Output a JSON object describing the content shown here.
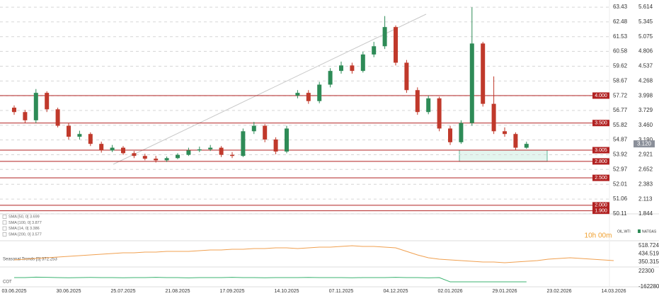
{
  "chart_data": {
    "type": "candlestick",
    "categories": [
      "03.06.2025",
      null,
      null,
      null,
      null,
      "30.06.2025",
      null,
      null,
      null,
      null,
      "25.07.2025",
      null,
      null,
      null,
      null,
      "21.08.2025",
      null,
      null,
      null,
      null,
      "17.09.2025",
      null,
      null,
      null,
      null,
      "14.10.2025",
      null,
      null,
      null,
      null,
      "07.11.2025",
      null,
      null,
      null,
      null,
      "04.12.2025",
      null,
      null,
      null,
      null,
      "02.01.2026",
      null,
      null,
      null,
      null,
      "29.01.2026",
      null,
      null,
      null,
      null,
      "23.02.2026",
      null,
      null,
      null,
      null,
      "14.03.2026"
    ],
    "series": [
      {
        "name": "NATGAS",
        "axis": "y2",
        "up_color": "#2e8b57",
        "down_color": "#c0392b",
        "open": [
          3.78,
          3.7,
          3.55,
          4.05,
          3.75,
          3.45,
          3.25,
          3.3,
          3.12,
          3.0,
          3.05,
          2.95,
          2.9,
          2.85,
          2.82,
          2.86,
          2.92,
          3.0,
          3.02,
          3.05,
          2.92,
          2.9,
          3.35,
          3.45,
          3.2,
          2.98,
          4.0,
          4.05,
          3.9,
          4.2,
          4.45,
          4.55,
          4.45,
          4.75,
          4.9,
          5.25,
          4.6,
          4.1,
          3.7,
          3.95,
          3.4,
          3.15,
          3.5,
          4.95,
          3.85,
          3.35,
          3.3,
          3.05,
          null,
          null,
          null,
          null,
          null,
          null,
          null,
          null
        ],
        "high": [
          3.82,
          3.74,
          4.12,
          4.08,
          3.78,
          3.5,
          3.36,
          3.33,
          3.16,
          3.1,
          3.08,
          2.99,
          2.94,
          2.9,
          2.89,
          2.95,
          3.05,
          3.07,
          3.1,
          3.08,
          2.97,
          3.4,
          3.52,
          3.48,
          3.24,
          3.45,
          4.1,
          4.1,
          4.25,
          4.5,
          4.62,
          4.6,
          4.8,
          4.98,
          5.45,
          5.28,
          4.65,
          4.15,
          4.0,
          3.98,
          3.45,
          3.55,
          5.61,
          4.98,
          4.35,
          3.42,
          3.33,
          3.16,
          null,
          null,
          null,
          null,
          null,
          null,
          null,
          null
        ],
        "low": [
          3.65,
          3.5,
          3.5,
          3.7,
          3.42,
          3.2,
          3.2,
          3.08,
          2.96,
          2.97,
          2.92,
          2.86,
          2.82,
          2.78,
          2.79,
          2.84,
          2.9,
          2.97,
          2.99,
          2.88,
          2.86,
          2.88,
          3.3,
          3.15,
          2.93,
          2.95,
          3.95,
          3.85,
          3.86,
          4.15,
          4.4,
          4.4,
          4.42,
          4.7,
          4.85,
          4.55,
          4.05,
          3.65,
          3.66,
          3.35,
          3.1,
          3.12,
          3.45,
          3.8,
          3.3,
          3.25,
          3.0,
          3.03,
          null,
          null,
          null,
          null,
          null,
          null,
          null,
          null
        ],
        "close": [
          3.7,
          3.55,
          4.05,
          3.75,
          3.45,
          3.25,
          3.3,
          3.12,
          3.0,
          3.05,
          2.95,
          2.9,
          2.85,
          2.82,
          2.86,
          2.92,
          3.0,
          3.02,
          3.05,
          2.92,
          2.9,
          3.35,
          3.45,
          3.2,
          2.98,
          3.4,
          4.05,
          3.9,
          4.2,
          4.45,
          4.55,
          4.45,
          4.75,
          4.9,
          5.25,
          4.6,
          4.1,
          3.7,
          3.95,
          3.4,
          3.15,
          3.5,
          4.95,
          3.85,
          3.35,
          3.3,
          3.05,
          3.12,
          null,
          null,
          null,
          null,
          null,
          null,
          null,
          null
        ]
      }
    ],
    "ylim": [
      49.97,
      63.89
    ],
    "yticks": [
      63.43,
      62.48,
      61.53,
      60.58,
      59.62,
      58.67,
      57.72,
      56.77,
      55.82,
      54.87,
      53.92,
      52.97,
      52.01,
      51.06,
      50.11
    ],
    "y2lim": [
      1.805,
      5.743
    ],
    "y2ticks": [
      5.614,
      5.345,
      5.075,
      4.806,
      4.537,
      4.268,
      3.998,
      3.729,
      {
        "value": 3.46,
        "label": "3.460"
      },
      {
        "value": 3.19,
        "label": "3.190"
      },
      2.921,
      2.652,
      2.383,
      2.113,
      1.844
    ],
    "grid": true,
    "levels": [
      {
        "value": 4,
        "label": "4.000"
      },
      {
        "value": 3.5,
        "label": "3.500"
      },
      {
        "value": 3.005,
        "label": "3.005"
      },
      {
        "value": 2.8,
        "label": "2.800"
      },
      {
        "value": 2.5,
        "label": "2.500"
      },
      {
        "value": 2,
        "label": "2.000"
      },
      {
        "value": 1.9,
        "label": "1.900"
      }
    ],
    "level_color": "#b22222",
    "last_price": {
      "value": 3.12,
      "label": "3.120"
    },
    "indicators": [
      "SMA [50, 0] 3.699",
      "SMA [100, 0] 3.877",
      "SMA [14, 0] 3.386",
      "SMA [200, 0] 3.577"
    ],
    "countdown": "10h 00m",
    "instruments": [
      "OIL.WTI",
      "NATGAS"
    ],
    "seasonal": {
      "title": "Seasonal Trends [5] 372.253",
      "color": "#f0a050",
      "values": [
        372.3,
        379.6,
        386.9,
        394.3,
        401.6,
        408.9,
        416.2,
        423.6,
        430.9,
        438.2,
        445.5,
        445.5,
        452.8,
        452.8,
        460.2,
        460.2,
        460.2,
        467.5,
        474.8,
        474.8,
        482.1,
        482.1,
        489.4,
        489.4,
        496.8,
        496.8,
        489.4,
        496.8,
        504.1,
        504.1,
        511.4,
        518.7,
        511.4,
        511.4,
        504.1,
        496.8,
        460.2,
        423.6,
        394.3,
        379.6,
        372.3,
        365.0,
        357.7,
        350.4,
        350.4,
        343.0,
        350.4,
        357.7,
        365.0,
        379.6,
        386.9,
        394.3,
        386.9,
        379.6,
        372.3,
        365.0
      ],
      "ylim": [
        306.4,
        570
      ],
      "yticks": [
        518.724,
        434.519,
        350.315
      ]
    },
    "cot": {
      "title": "COT",
      "color": "#3cb371",
      "values": [
        -53210,
        -53210,
        -48000,
        -50000,
        -53210,
        -55000,
        -53210,
        -51000,
        -53210,
        -53210,
        -55000,
        -53210,
        -53210,
        -50000,
        -53210,
        -53210,
        -56000,
        -53210,
        -53210,
        -53210,
        -50000,
        -53210,
        -53210,
        -55000,
        -53210,
        -53210,
        -53210,
        -51000,
        -53210,
        -53210,
        -53210,
        -55000,
        -53210,
        -53210,
        -53210,
        -50000,
        -53210,
        -53210,
        -56000,
        -53210,
        -103550,
        -103550,
        -103550,
        -103550,
        -103550,
        -103550,
        -103550,
        -103550,
        null,
        null,
        null,
        null,
        null,
        null,
        null,
        null
      ],
      "ylim": [
        -170670,
        64250
      ],
      "yticks": [
        22300,
        -162280
      ]
    }
  }
}
